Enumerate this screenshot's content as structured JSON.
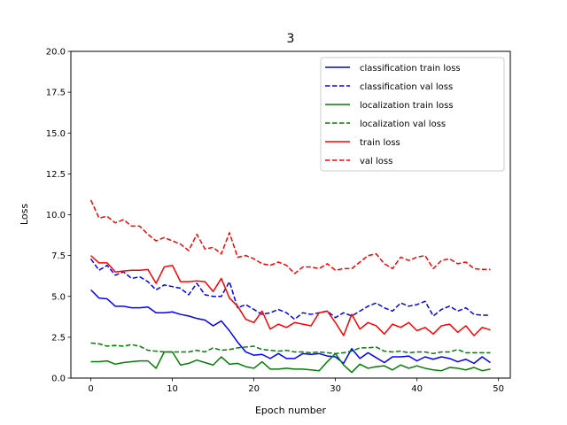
{
  "chart_data": {
    "type": "line",
    "title": "3",
    "xlabel": "Epoch number",
    "ylabel": "Loss",
    "xlim": [
      -2.45,
      51.45
    ],
    "ylim": [
      0,
      20
    ],
    "xticks": [
      0,
      10,
      20,
      30,
      40,
      50
    ],
    "yticks": [
      0.0,
      2.5,
      5.0,
      7.5,
      10.0,
      12.5,
      15.0,
      17.5,
      20.0
    ],
    "ytick_labels": [
      "0.0",
      "2.5",
      "5.0",
      "7.5",
      "10.0",
      "12.5",
      "15.0",
      "17.5",
      "20.0"
    ],
    "grid": false,
    "legend_position": "top-right",
    "x": [
      0,
      1,
      2,
      3,
      4,
      5,
      6,
      7,
      8,
      9,
      10,
      11,
      12,
      13,
      14,
      15,
      16,
      17,
      18,
      19,
      20,
      21,
      22,
      23,
      24,
      25,
      26,
      27,
      28,
      29,
      30,
      31,
      32,
      33,
      34,
      35,
      36,
      37,
      38,
      39,
      40,
      41,
      42,
      43,
      44,
      45,
      46,
      47,
      48,
      49
    ],
    "series": [
      {
        "name": "classification train loss",
        "color": "#0000ff",
        "dash": "solid",
        "values": [
          5.4,
          4.9,
          4.85,
          4.4,
          4.4,
          4.3,
          4.3,
          4.35,
          4.0,
          4.0,
          4.05,
          3.9,
          3.8,
          3.65,
          3.55,
          3.2,
          3.5,
          2.9,
          2.2,
          1.6,
          1.4,
          1.45,
          1.2,
          1.5,
          1.2,
          1.2,
          1.5,
          1.45,
          1.5,
          1.35,
          1.3,
          0.9,
          1.8,
          1.2,
          1.55,
          1.25,
          0.95,
          1.3,
          1.3,
          1.35,
          1.05,
          1.3,
          1.15,
          1.3,
          1.2,
          1.0,
          1.15,
          0.9,
          1.3,
          0.95
        ]
      },
      {
        "name": "classification val loss",
        "color": "#0000ff",
        "dash": "dashed",
        "values": [
          7.3,
          6.6,
          6.9,
          6.3,
          6.5,
          6.1,
          6.2,
          5.9,
          5.4,
          5.7,
          5.6,
          5.5,
          5.1,
          5.8,
          5.1,
          5.0,
          5.0,
          5.9,
          4.3,
          4.5,
          4.2,
          3.9,
          4.0,
          4.2,
          4.0,
          3.6,
          4.0,
          3.9,
          4.0,
          4.1,
          3.7,
          4.0,
          3.8,
          4.1,
          4.4,
          4.6,
          4.3,
          4.1,
          4.6,
          4.4,
          4.5,
          4.7,
          3.8,
          4.2,
          4.4,
          4.1,
          4.3,
          3.9,
          3.85,
          3.85
        ]
      },
      {
        "name": "localization train loss",
        "color": "#008000",
        "dash": "solid",
        "values": [
          1.0,
          1.0,
          1.05,
          0.85,
          0.95,
          1.0,
          1.05,
          1.05,
          0.6,
          1.6,
          1.6,
          0.8,
          0.9,
          1.1,
          0.95,
          0.8,
          1.3,
          0.85,
          0.9,
          0.7,
          0.6,
          1.0,
          0.55,
          0.55,
          0.6,
          0.55,
          0.55,
          0.5,
          0.45,
          1.0,
          1.5,
          0.8,
          0.35,
          0.85,
          0.6,
          0.7,
          0.75,
          0.5,
          0.8,
          0.6,
          0.75,
          0.6,
          0.5,
          0.45,
          0.65,
          0.6,
          0.5,
          0.65,
          0.45,
          0.55
        ]
      },
      {
        "name": "localization val loss",
        "color": "#008000",
        "dash": "dashed",
        "values": [
          2.15,
          2.1,
          1.95,
          2.0,
          1.95,
          2.05,
          1.95,
          1.7,
          1.65,
          1.6,
          1.6,
          1.6,
          1.6,
          1.7,
          1.6,
          1.85,
          1.7,
          1.75,
          1.85,
          1.9,
          1.95,
          1.75,
          1.7,
          1.65,
          1.7,
          1.6,
          1.6,
          1.55,
          1.6,
          1.55,
          1.5,
          1.55,
          1.65,
          1.85,
          1.85,
          1.9,
          1.65,
          1.6,
          1.65,
          1.55,
          1.6,
          1.6,
          1.5,
          1.6,
          1.6,
          1.75,
          1.55,
          1.55,
          1.55,
          1.55
        ]
      },
      {
        "name": "train loss",
        "color": "#ff0000",
        "dash": "solid",
        "values": [
          7.5,
          7.05,
          7.05,
          6.5,
          6.55,
          6.6,
          6.6,
          6.65,
          5.8,
          6.8,
          6.9,
          5.9,
          5.9,
          5.95,
          5.9,
          5.3,
          6.1,
          4.9,
          4.4,
          3.6,
          3.4,
          4.1,
          3.0,
          3.3,
          3.1,
          3.4,
          3.3,
          3.2,
          4.0,
          4.1,
          3.4,
          2.6,
          3.9,
          3.0,
          3.4,
          3.2,
          2.7,
          3.3,
          3.1,
          3.4,
          2.9,
          3.1,
          2.7,
          3.2,
          3.3,
          2.8,
          3.2,
          2.6,
          3.1,
          2.95
        ]
      },
      {
        "name": "val loss",
        "color": "#ff0000",
        "dash": "dashed",
        "values": [
          10.9,
          9.8,
          9.9,
          9.5,
          9.7,
          9.3,
          9.3,
          8.8,
          8.4,
          8.6,
          8.4,
          8.2,
          7.8,
          8.8,
          7.9,
          8.0,
          7.6,
          8.9,
          7.4,
          7.5,
          7.3,
          7.0,
          6.9,
          7.1,
          6.9,
          6.4,
          6.8,
          6.8,
          6.7,
          7.0,
          6.6,
          6.7,
          6.7,
          7.1,
          7.5,
          7.6,
          7.0,
          6.7,
          7.4,
          7.2,
          7.4,
          7.5,
          6.7,
          7.2,
          7.3,
          7.0,
          7.1,
          6.7,
          6.65,
          6.65
        ]
      }
    ]
  }
}
